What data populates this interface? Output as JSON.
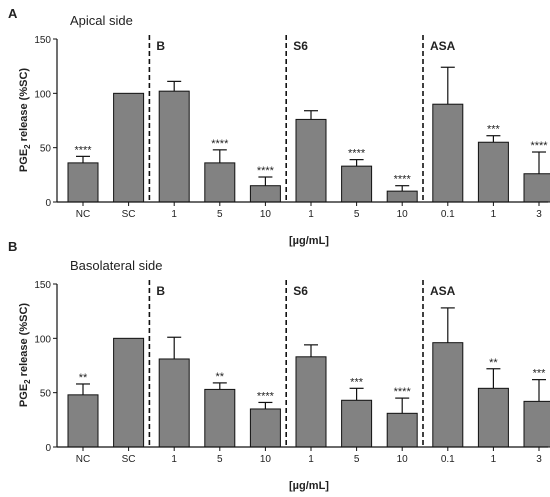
{
  "chart_data": [
    {
      "type": "bar",
      "panel_label": "A",
      "title": "Apical side",
      "ylabel_main": "PGE",
      "ylabel_sub": "2",
      "ylabel_rest": " release (%SC)",
      "xlabel": "[µg/mL]",
      "ylim": [
        0,
        150
      ],
      "yticks": [
        "0",
        "50",
        "100",
        "150"
      ],
      "categories": [
        "NC",
        "SC",
        "1",
        "5",
        "10",
        "1",
        "5",
        "10",
        "0.1",
        "1",
        "3"
      ],
      "values": [
        36,
        100,
        102,
        36,
        15,
        76,
        33,
        10,
        90,
        55,
        26
      ],
      "errors": [
        6,
        0,
        9,
        12,
        8,
        8,
        6,
        5,
        34,
        6,
        20
      ],
      "significance": [
        "****",
        "",
        "",
        "****",
        "****",
        "",
        "****",
        "****",
        "",
        "***",
        "****"
      ],
      "groups": [
        {
          "label": "B",
          "start": 2
        },
        {
          "label": "S6",
          "start": 5
        },
        {
          "label": "ASA",
          "start": 8
        }
      ]
    },
    {
      "type": "bar",
      "panel_label": "B",
      "title": "Basolateral side",
      "ylabel_main": "PGE",
      "ylabel_sub": "2",
      "ylabel_rest": " release (%SC)",
      "xlabel": "[µg/mL]",
      "ylim": [
        0,
        150
      ],
      "yticks": [
        "0",
        "50",
        "100",
        "150"
      ],
      "categories": [
        "NC",
        "SC",
        "1",
        "5",
        "10",
        "1",
        "5",
        "10",
        "0.1",
        "1",
        "3"
      ],
      "values": [
        48,
        100,
        81,
        53,
        35,
        83,
        43,
        31,
        96,
        54,
        42
      ],
      "errors": [
        10,
        0,
        20,
        6,
        6,
        11,
        11,
        14,
        32,
        18,
        20
      ],
      "significance": [
        "**",
        "",
        "",
        "**",
        "****",
        "",
        "***",
        "****",
        "",
        "**",
        "***"
      ],
      "groups": [
        {
          "label": "B",
          "start": 2
        },
        {
          "label": "S6",
          "start": 5
        },
        {
          "label": "ASA",
          "start": 8
        }
      ]
    }
  ],
  "colors": {
    "bar_fill": "#828282",
    "bar_stroke": "#111111",
    "axis": "#111111",
    "text": "#222222"
  }
}
